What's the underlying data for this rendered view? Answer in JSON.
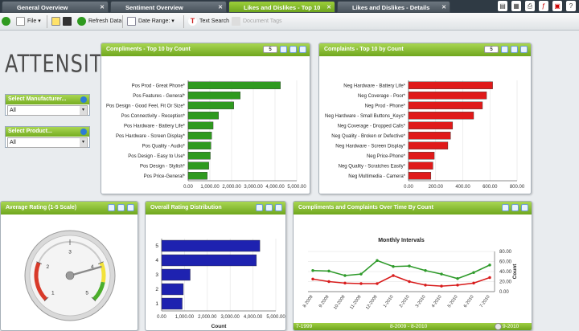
{
  "tabs": [
    {
      "label": "General Overview",
      "active": false
    },
    {
      "label": "Sentiment Overview",
      "active": false
    },
    {
      "label": "Likes and Dislikes - Top 10",
      "active": true
    },
    {
      "label": "Likes and Dislikes - Details",
      "active": false
    }
  ],
  "toolbar": {
    "file_label": "File",
    "refresh_label": "Refresh Data",
    "date_range_label": "Date Range:",
    "text_search_label": "Text Search",
    "document_tags_label": "Document Tags"
  },
  "logo_text": "ATTENSITY",
  "selectors": [
    {
      "title": "Select Manufacturer...",
      "value": "All"
    },
    {
      "title": "Select Product...",
      "value": "All"
    }
  ],
  "panels": {
    "compliments": {
      "title": "Compliments - Top 10 by Count",
      "count_badge": "5"
    },
    "complaints": {
      "title": "Complaints - Top 10 by Count",
      "count_badge": "5"
    },
    "rating": {
      "title": "Average Rating (1-5 Scale)"
    },
    "distribution": {
      "title": "Overall Rating Distribution"
    },
    "overtime": {
      "title": "Compliments and Complaints Over Time By Count"
    }
  },
  "slider": {
    "start": "7-1999",
    "range": "8-2009 - 8-2010",
    "end": "9-2010"
  },
  "colors": {
    "accent": "#7cb82f",
    "compliments": "#2f9a1f",
    "complaints": "#d81c1c",
    "distribution": "#1e22b0"
  },
  "gauge": {
    "min": 1,
    "max": 5,
    "tick_labels": [
      "1",
      "2",
      "3",
      "4",
      "5"
    ],
    "value": 4.1
  },
  "chart_data": [
    {
      "type": "bar",
      "orientation": "horizontal",
      "title": "",
      "xlabel": "Count",
      "categories": [
        "Pos Prod - Great Phone*",
        "Pos Features - General*",
        "Pos Design - Good Feel, Fit Or Size*",
        "Pos Connectivity - Reception*",
        "Pos Hardware - Battery Life*",
        "Pos Hardware - Screen Display*",
        "Pos Quality - Audio*",
        "Pos Design - Easy to Use*",
        "Pos Design - Stylish*",
        "Pos Price-General*"
      ],
      "values": [
        4250,
        2400,
        2100,
        1400,
        1150,
        1080,
        1050,
        1020,
        950,
        880
      ],
      "xlim": [
        0,
        5000
      ],
      "ticks": [
        "0.00",
        "1,000.00",
        "2,000.00",
        "3,000.00",
        "4,000.00",
        "5,000.00"
      ]
    },
    {
      "type": "bar",
      "orientation": "horizontal",
      "title": "",
      "xlabel": "Count",
      "categories": [
        "Neg Hardware - Battery Life*",
        "Neg Coverage - Poor*",
        "Neg Prod - Phone*",
        "Neg Hardware - Small Buttons_Keys*",
        "Neg Coverage - Dropped Calls*",
        "Neg Quality - Broken or Defective*",
        "Neg Hardware - Screen Display*",
        "Neg Price-Phone*",
        "Neg Quality - Scratches Easily*",
        "Neg Multimedia - Camera*"
      ],
      "values": [
        620,
        575,
        545,
        480,
        325,
        310,
        290,
        190,
        180,
        165
      ],
      "xlim": [
        0,
        800
      ],
      "ticks": [
        "0.00",
        "200.00",
        "400.00",
        "600.00",
        "800.00"
      ]
    },
    {
      "type": "bar",
      "orientation": "horizontal",
      "title": "",
      "xlabel": "Count",
      "categories": [
        "5",
        "4",
        "3",
        "2",
        "1"
      ],
      "values": [
        4300,
        4150,
        1250,
        950,
        900
      ],
      "xlim": [
        0,
        5000
      ],
      "ticks": [
        "0.00",
        "1,000.00",
        "2,000.00",
        "3,000.00",
        "4,000.00",
        "5,000.00"
      ]
    },
    {
      "type": "line",
      "title": "Monthly Intervals",
      "ylabel": "Count",
      "x": [
        "8-2009",
        "9-2009",
        "10-2009",
        "11-2009",
        "12-2009",
        "1-2010",
        "2-2010",
        "3-2010",
        "4-2010",
        "5-2010",
        "6-2010",
        "7-2010"
      ],
      "ylim": [
        0,
        80
      ],
      "ticks": [
        "0.00",
        "20.00",
        "40.00",
        "60.00",
        "80.00"
      ],
      "series": [
        {
          "color": "#2e9a2a",
          "values": [
            42,
            41,
            32,
            35,
            62,
            50,
            51,
            42,
            35,
            26,
            38,
            53
          ]
        },
        {
          "color": "#d81c1c",
          "values": [
            25,
            20,
            17,
            16,
            16,
            32,
            20,
            13,
            11,
            13,
            17,
            28
          ]
        }
      ]
    }
  ]
}
